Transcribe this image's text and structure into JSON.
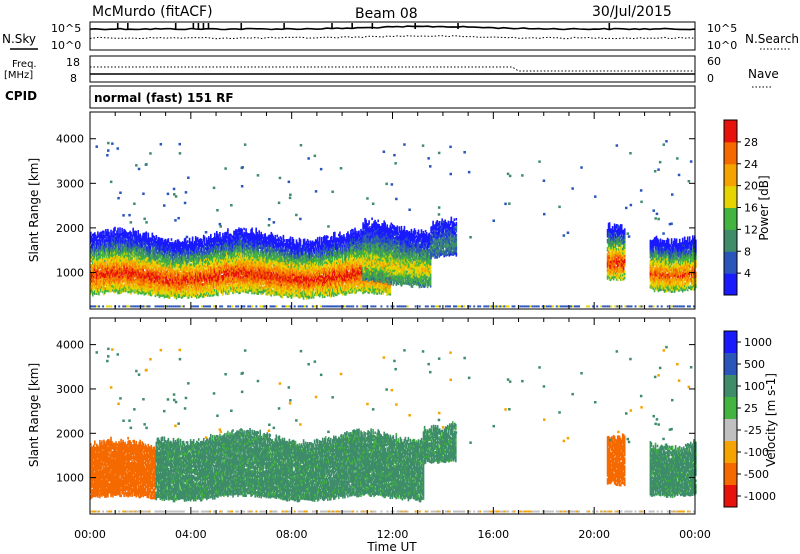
{
  "header": {
    "station": "McMurdo (fitACF)",
    "beam": "Beam 08",
    "date": "30/Jul/2015"
  },
  "status_panel": {
    "left_labels": [
      "N.Sky",
      "Freq.",
      "[MHz]",
      "CPID"
    ],
    "right_labels": [
      "N.Search",
      "Nave"
    ],
    "nsky_ticks": [
      "10^5",
      "10^0"
    ],
    "nsearch_ticks": [
      "10^5",
      "10^0"
    ],
    "freq_ticks": [
      "18",
      "8"
    ],
    "nave_ticks": [
      "60",
      "0"
    ],
    "cpid_text": "normal (fast) 151 RF"
  },
  "chart_data": [
    {
      "type": "heatmap",
      "panel": "power",
      "title": "",
      "xlabel": "Time UT",
      "ylabel": "Slant Range [km]",
      "x_ticks": [
        "00:00",
        "04:00",
        "08:00",
        "12:00",
        "16:00",
        "20:00",
        "00:00"
      ],
      "x_range_hours": [
        0,
        24
      ],
      "y_ticks": [
        1000,
        2000,
        3000,
        4000
      ],
      "ylim": [
        180,
        4600
      ],
      "colorbar": {
        "label": "Power [dB]",
        "tick_labels": [
          "4",
          "8",
          "12",
          "16",
          "20",
          "24",
          "28"
        ],
        "range": [
          0,
          30
        ],
        "colors": [
          "#1a1aff",
          "#2a55bb",
          "#3e8c6a",
          "#43b43f",
          "#e6d400",
          "#f5a300",
          "#f56a00",
          "#e8120c"
        ]
      },
      "echo_regions": [
        {
          "t_start": 0.0,
          "t_end": 11.9,
          "range_low": 500,
          "range_high": 1800,
          "peak_db": 28
        },
        {
          "t_start": 10.8,
          "t_end": 13.5,
          "range_low": 750,
          "range_high": 2000,
          "peak_db": 18
        },
        {
          "t_start": 13.5,
          "t_end": 14.5,
          "range_low": 1400,
          "range_high": 2200,
          "peak_db": 10
        },
        {
          "t_start": 20.5,
          "t_end": 21.2,
          "range_low": 800,
          "range_high": 1900,
          "peak_db": 28
        },
        {
          "t_start": 22.2,
          "t_end": 24.0,
          "range_low": 650,
          "range_high": 1800,
          "peak_db": 26
        }
      ]
    },
    {
      "type": "heatmap",
      "panel": "velocity",
      "title": "",
      "xlabel": "Time UT",
      "ylabel": "Slant Range [km]",
      "x_ticks": [
        "00:00",
        "04:00",
        "08:00",
        "12:00",
        "16:00",
        "20:00",
        "00:00"
      ],
      "x_range_hours": [
        0,
        24
      ],
      "y_ticks": [
        1000,
        2000,
        3000,
        4000
      ],
      "ylim": [
        180,
        4600
      ],
      "colorbar": {
        "label": "Velocity [m s-1]",
        "tick_labels": [
          "1000",
          "500",
          "100",
          "25",
          "-25",
          "-100",
          "-500",
          "-1000"
        ],
        "colors": [
          "#1a1aff",
          "#2a55bb",
          "#3e8c6a",
          "#43b43f",
          "#c0c0c0",
          "#f5a300",
          "#f56a00",
          "#e8120c"
        ]
      },
      "echo_regions": [
        {
          "t_start": 0.0,
          "t_end": 2.6,
          "range_low": 550,
          "range_high": 1700,
          "velocity": -100
        },
        {
          "t_start": 2.6,
          "t_end": 13.2,
          "range_low": 550,
          "range_high": 1900,
          "velocity": 100
        },
        {
          "t_start": 13.2,
          "t_end": 14.5,
          "range_low": 1400,
          "range_high": 2200,
          "velocity": 100
        },
        {
          "t_start": 20.5,
          "t_end": 21.2,
          "range_low": 800,
          "range_high": 1800,
          "velocity": -100
        },
        {
          "t_start": 22.2,
          "t_end": 24.0,
          "range_low": 650,
          "range_high": 1800,
          "velocity": 100
        }
      ]
    }
  ]
}
